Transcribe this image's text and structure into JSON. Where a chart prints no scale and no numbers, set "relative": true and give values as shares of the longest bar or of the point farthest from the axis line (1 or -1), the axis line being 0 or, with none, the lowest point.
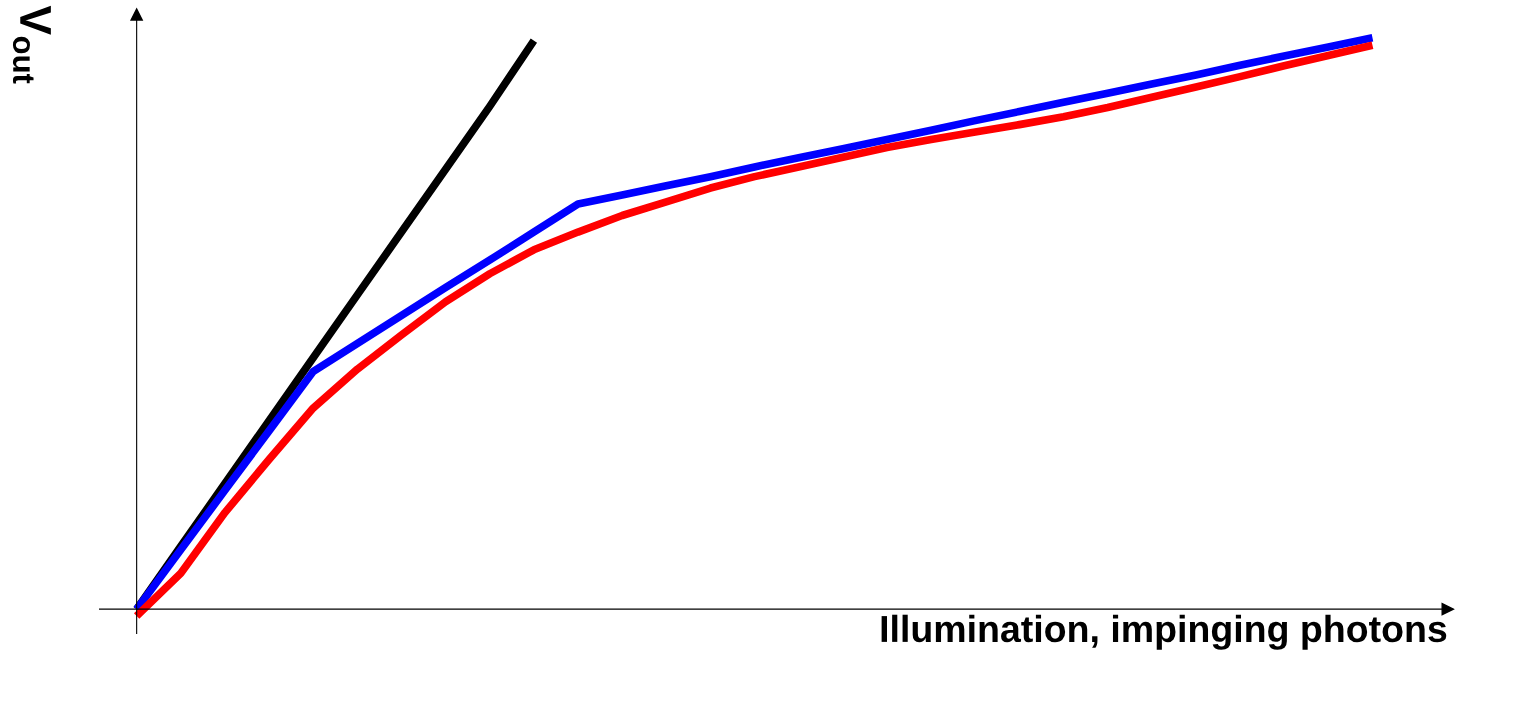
{
  "chart_data": {
    "type": "line",
    "relative": true,
    "xlabel": "Illumination, impinging photons",
    "ylabel": "V$_{out}$",
    "tick_labels": false,
    "legend": false,
    "marker": "none",
    "line_style": "solid",
    "categories": [
      null,
      null,
      null,
      null,
      null,
      null,
      null,
      null,
      null,
      null,
      null,
      null,
      null,
      null,
      null,
      null,
      null,
      null,
      null,
      null,
      null,
      null,
      null,
      null,
      null,
      null,
      null,
      null,
      null
    ],
    "series": [
      {
        "color": "#000000",
        "values": [
          0,
          0.11,
          0.22,
          0.33,
          0.44,
          0.55,
          0.66,
          0.77,
          0.88,
          0.995,
          null,
          null,
          null,
          null,
          null,
          null,
          null,
          null,
          null,
          null,
          null,
          null,
          null,
          null,
          null,
          null,
          null,
          null,
          null
        ]
      },
      {
        "color": "#0000ff",
        "values": [
          0,
          0.104,
          0.208,
          0.312,
          0.416,
          0.465,
          0.514,
          0.563,
          0.611,
          0.66,
          0.709,
          0.725,
          0.741,
          0.757,
          0.774,
          0.79,
          0.806,
          0.822,
          0.838,
          0.855,
          0.871,
          0.887,
          0.903,
          0.919,
          0.935,
          0.952,
          0.968,
          0.984,
          1
        ]
      },
      {
        "color": "#ff0000",
        "values": [
          -0.012,
          0.063,
          0.169,
          0.262,
          0.352,
          0.42,
          0.48,
          0.538,
          0.587,
          0.629,
          0.66,
          0.689,
          0.713,
          0.737,
          0.757,
          0.774,
          0.791,
          0.808,
          0.822,
          0.835,
          0.848,
          0.862,
          0.878,
          0.896,
          0.914,
          0.932,
          0.951,
          0.969,
          0.987
        ]
      }
    ]
  }
}
